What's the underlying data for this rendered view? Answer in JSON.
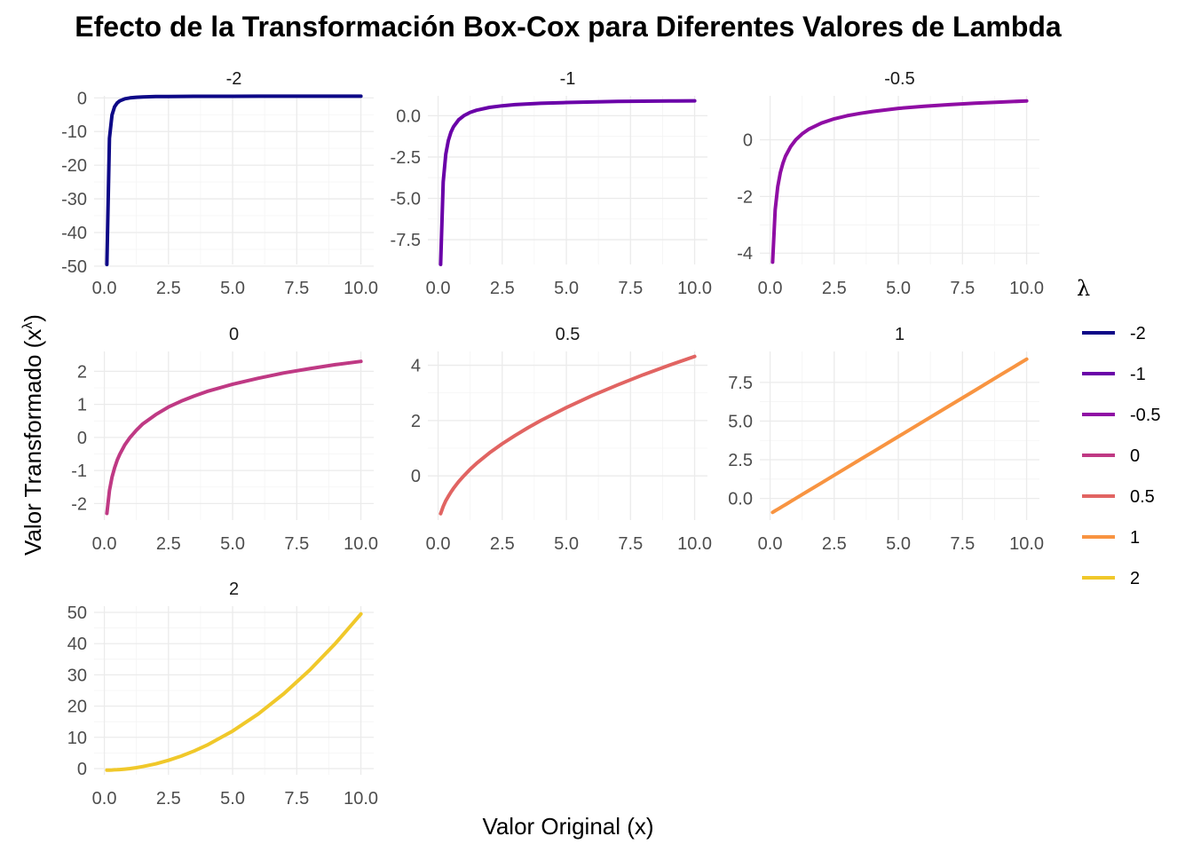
{
  "chart_data": {
    "type": "line",
    "title": "Efecto de la Transformación Box-Cox para Diferentes Valores de Lambda",
    "xlabel": "Valor Original (x)",
    "ylabel": "Valor Transformado (x^λ)",
    "ylabel_main": "Valor Transformado (x",
    "ylabel_sup": "λ",
    "ylabel_end": ")",
    "legend": {
      "title": "λ",
      "position": "right"
    },
    "grid": true,
    "x": [
      0.1,
      0.2,
      0.3,
      0.4,
      0.5,
      0.6,
      0.8,
      1.0,
      1.25,
      1.5,
      2.0,
      2.5,
      3.0,
      3.5,
      4.0,
      5.0,
      6.0,
      7.0,
      8.0,
      9.0,
      10.0
    ],
    "panels": [
      {
        "name": "-2",
        "color": "#0d0887",
        "xlim": [
          -0.4,
          10.5
        ],
        "ylim": [
          -49.5,
          0.6
        ],
        "xticks": [
          "0.0",
          "2.5",
          "5.0",
          "7.5",
          "10.0"
        ],
        "xtick_values": [
          0,
          2.5,
          5,
          7.5,
          10
        ],
        "yticks": [
          "0",
          "-10",
          "-20",
          "-30",
          "-40",
          "-50"
        ],
        "ytick_values": [
          0,
          -10,
          -20,
          -30,
          -40,
          -50
        ],
        "values": [
          -49.5,
          -12,
          -5.06,
          -2.63,
          -1.5,
          -0.89,
          -0.28,
          0,
          0.18,
          0.28,
          0.38,
          0.42,
          0.44,
          0.46,
          0.47,
          0.48,
          0.49,
          0.49,
          0.49,
          0.49,
          0.5
        ]
      },
      {
        "name": "-1",
        "color": "#6a00a8",
        "xlim": [
          -0.4,
          10.5
        ],
        "ylim": [
          -9.0,
          1.2
        ],
        "xticks": [
          "0.0",
          "2.5",
          "5.0",
          "7.5",
          "10.0"
        ],
        "xtick_values": [
          0,
          2.5,
          5,
          7.5,
          10
        ],
        "yticks": [
          "0.0",
          "-2.5",
          "-5.0",
          "-7.5"
        ],
        "ytick_values": [
          0,
          -2.5,
          -5,
          -7.5
        ],
        "values": [
          -9.0,
          -4.0,
          -2.33,
          -1.5,
          -1.0,
          -0.67,
          -0.25,
          0,
          0.2,
          0.33,
          0.5,
          0.6,
          0.67,
          0.71,
          0.75,
          0.8,
          0.83,
          0.86,
          0.88,
          0.89,
          0.9
        ]
      },
      {
        "name": "-0.5",
        "color": "#8f0da4",
        "xlim": [
          -0.4,
          10.5
        ],
        "ylim": [
          -4.4,
          1.55
        ],
        "xticks": [
          "0.0",
          "2.5",
          "5.0",
          "7.5",
          "10.0"
        ],
        "xtick_values": [
          0,
          2.5,
          5,
          7.5,
          10
        ],
        "yticks": [
          "0",
          "-2",
          "-4"
        ],
        "ytick_values": [
          0,
          -2,
          -4
        ],
        "values": [
          -4.32,
          -2.47,
          -1.65,
          -1.16,
          -0.83,
          -0.58,
          -0.24,
          0,
          0.21,
          0.37,
          0.59,
          0.74,
          0.85,
          0.93,
          1.0,
          1.11,
          1.18,
          1.24,
          1.29,
          1.33,
          1.37
        ]
      },
      {
        "name": "0",
        "color": "#bf3984",
        "xlim": [
          -0.4,
          10.5
        ],
        "ylim": [
          -2.5,
          2.6
        ],
        "xticks": [
          "0.0",
          "2.5",
          "5.0",
          "7.5",
          "10.0"
        ],
        "xtick_values": [
          0,
          2.5,
          5,
          7.5,
          10
        ],
        "yticks": [
          "2",
          "1",
          "0",
          "-1",
          "-2"
        ],
        "ytick_values": [
          2,
          1,
          0,
          -1,
          -2
        ],
        "values": [
          -2.3,
          -1.61,
          -1.2,
          -0.92,
          -0.69,
          -0.51,
          -0.22,
          0,
          0.22,
          0.41,
          0.69,
          0.92,
          1.1,
          1.25,
          1.39,
          1.61,
          1.79,
          1.95,
          2.08,
          2.2,
          2.3
        ]
      },
      {
        "name": "0.5",
        "color": "#e16462",
        "xlim": [
          -0.4,
          10.5
        ],
        "ylim": [
          -1.6,
          4.5
        ],
        "xticks": [
          "0.0",
          "2.5",
          "5.0",
          "7.5",
          "10.0"
        ],
        "xtick_values": [
          0,
          2.5,
          5,
          7.5,
          10
        ],
        "yticks": [
          "4",
          "2",
          "0"
        ],
        "ytick_values": [
          4,
          2,
          0
        ],
        "values": [
          -1.37,
          -1.11,
          -0.9,
          -0.74,
          -0.59,
          -0.45,
          -0.21,
          0,
          0.24,
          0.45,
          0.83,
          1.16,
          1.46,
          1.74,
          2.0,
          2.47,
          2.9,
          3.29,
          3.66,
          4.0,
          4.32
        ]
      },
      {
        "name": "1",
        "color": "#f89441",
        "xlim": [
          -0.4,
          10.5
        ],
        "ylim": [
          -1.4,
          9.5
        ],
        "xticks": [
          "0.0",
          "2.5",
          "5.0",
          "7.5",
          "10.0"
        ],
        "xtick_values": [
          0,
          2.5,
          5,
          7.5,
          10
        ],
        "yticks": [
          "7.5",
          "5.0",
          "2.5",
          "0.0"
        ],
        "ytick_values": [
          7.5,
          5,
          2.5,
          0
        ],
        "values": [
          -0.9,
          -0.8,
          -0.7,
          -0.6,
          -0.5,
          -0.4,
          -0.2,
          0,
          0.25,
          0.5,
          1.0,
          1.5,
          2.0,
          2.5,
          3.0,
          4.0,
          5.0,
          6.0,
          7.0,
          8.0,
          9.0
        ]
      },
      {
        "name": "2",
        "color": "#f0c82a",
        "xlim": [
          -0.4,
          10.5
        ],
        "ylim": [
          -2.0,
          52.0
        ],
        "xticks": [
          "0.0",
          "2.5",
          "5.0",
          "7.5",
          "10.0"
        ],
        "xtick_values": [
          0,
          2.5,
          5,
          7.5,
          10
        ],
        "yticks": [
          "50",
          "40",
          "30",
          "20",
          "10",
          "0"
        ],
        "ytick_values": [
          50,
          40,
          30,
          20,
          10,
          0
        ],
        "values": [
          -0.5,
          -0.48,
          -0.46,
          -0.42,
          -0.38,
          -0.32,
          -0.18,
          0,
          0.28,
          0.63,
          1.5,
          2.63,
          4.0,
          5.63,
          7.5,
          12.0,
          17.5,
          24.0,
          31.5,
          40.0,
          49.5
        ]
      }
    ]
  }
}
